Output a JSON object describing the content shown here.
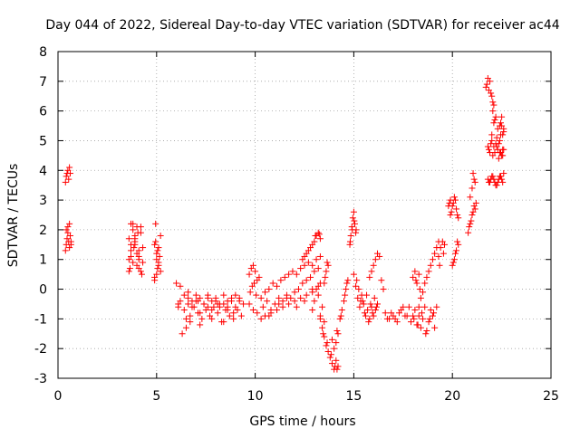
{
  "chart_data": {
    "type": "scatter",
    "title": "Day 044 of 2022, Sidereal Day-to-day VTEC variation (SDTVAR) for receiver ac44",
    "xlabel": "GPS time / hours",
    "ylabel": "SDTVAR / TECUs",
    "xlim": [
      0,
      25
    ],
    "ylim": [
      -3,
      8
    ],
    "xticks": [
      "0",
      "5",
      "10",
      "15",
      "20",
      "25"
    ],
    "yticks": [
      "-3",
      "-2",
      "-1",
      "0",
      "1",
      "2",
      "3",
      "4",
      "5",
      "6",
      "7",
      "8"
    ],
    "grid": true,
    "marker": "+",
    "series": [
      {
        "name": "SDTVAR",
        "color": "#ff0000",
        "x": [
          0.38,
          0.42,
          0.46,
          0.5,
          0.54,
          0.58,
          0.62,
          0.38,
          0.42,
          0.46,
          0.5,
          0.54,
          0.58,
          0.62,
          0.66,
          0.42,
          0.5,
          0.58,
          0.66,
          3.6,
          3.7,
          3.8,
          3.9,
          4.0,
          4.1,
          4.2,
          4.3,
          3.6,
          3.7,
          3.8,
          3.9,
          4.0,
          4.1,
          4.2,
          3.6,
          3.7,
          3.8,
          3.9,
          4.0,
          4.1,
          4.2,
          3.7,
          3.9,
          4.1,
          4.3,
          3.65,
          3.85,
          4.05,
          4.25,
          4.9,
          5.0,
          5.1,
          5.2,
          4.9,
          5.0,
          5.1,
          5.2,
          4.95,
          5.05,
          5.15,
          4.9,
          5.0,
          5.1,
          4.95,
          5.05,
          6.0,
          6.2,
          6.4,
          6.6,
          6.8,
          7.0,
          7.2,
          7.4,
          7.6,
          7.8,
          8.0,
          8.2,
          8.4,
          8.6,
          8.8,
          9.0,
          9.2,
          9.4,
          6.1,
          6.3,
          6.5,
          6.7,
          6.9,
          7.1,
          7.3,
          7.5,
          7.7,
          7.9,
          8.1,
          8.3,
          8.5,
          8.7,
          8.9,
          9.1,
          9.3,
          6.2,
          6.4,
          6.6,
          6.8,
          7.0,
          7.2,
          7.4,
          7.6,
          7.8,
          8.0,
          8.2,
          8.4,
          8.6,
          8.8,
          9.0,
          6.5,
          6.7,
          7.2,
          7.8,
          8.4,
          8.9,
          6.1,
          6.6,
          7.1,
          7.6,
          8.1,
          8.6,
          9.2,
          9.7,
          9.8,
          9.9,
          10.0,
          10.1,
          10.2,
          9.75,
          9.85,
          9.95,
          10.05,
          9.7,
          9.9,
          10.1,
          10.3,
          10.5,
          10.7,
          10.9,
          11.1,
          11.3,
          11.5,
          11.7,
          11.9,
          12.1,
          12.3,
          12.5,
          12.7,
          12.9,
          13.1,
          13.3,
          10.4,
          10.6,
          10.8,
          11.0,
          11.2,
          11.4,
          11.6,
          11.8,
          12.0,
          12.2,
          12.4,
          12.6,
          12.8,
          13.0,
          13.2,
          10.5,
          10.8,
          11.1,
          11.4,
          11.7,
          12.0,
          12.3,
          12.6,
          12.9,
          13.2,
          10.3,
          10.7,
          11.2,
          11.6,
          12.1,
          12.5,
          12.9,
          13.3,
          12.4,
          12.6,
          12.8,
          13.0,
          13.1,
          13.2,
          13.3,
          12.5,
          12.7,
          12.9,
          13.05,
          13.25,
          12.9,
          13.0,
          13.1,
          13.2,
          13.3,
          13.4,
          13.5,
          13.3,
          13.4,
          13.5,
          13.6,
          13.7,
          13.8,
          13.9,
          14.0,
          14.1,
          14.2,
          13.45,
          13.65,
          13.85,
          14.05,
          14.15,
          14.1,
          14.2,
          13.9,
          14.0,
          14.15,
          13.5,
          13.6,
          13.7,
          13.55,
          13.65,
          14.3,
          14.4,
          14.5,
          14.6,
          14.7,
          14.35,
          14.55,
          14.65,
          14.8,
          14.85,
          14.9,
          14.95,
          15.0,
          15.05,
          15.1,
          14.82,
          14.92,
          15.02,
          15.12,
          15.0,
          15.1,
          15.2,
          15.3,
          15.4,
          15.5,
          15.6,
          15.7,
          15.8,
          15.9,
          16.0,
          16.1,
          16.2,
          15.15,
          15.35,
          15.55,
          15.75,
          15.95,
          16.15,
          15.25,
          15.45,
          15.65,
          15.85,
          16.05,
          15.8,
          15.9,
          16.0,
          16.1,
          16.2,
          16.3,
          16.4,
          16.5,
          16.6,
          16.8,
          17.0,
          17.2,
          17.4,
          17.6,
          17.8,
          16.7,
          16.9,
          17.1,
          17.3,
          17.5,
          17.7,
          17.9,
          18.0,
          18.1,
          18.2,
          18.3,
          18.4,
          18.5,
          18.6,
          18.7,
          18.8,
          18.9,
          19.0,
          19.1,
          19.2,
          18.05,
          18.25,
          18.45,
          18.65,
          18.85,
          19.05,
          18.0,
          18.1,
          18.2,
          18.3,
          18.15,
          18.35,
          18.3,
          18.4,
          18.5,
          18.6,
          18.7,
          18.8,
          18.9,
          19.0,
          19.1,
          19.2,
          19.3,
          19.3,
          19.4,
          19.5,
          19.6,
          19.35,
          19.55,
          19.9,
          20.0,
          20.1,
          20.2,
          20.3,
          19.95,
          20.05,
          20.15,
          20.25,
          20.0,
          20.1,
          20.2,
          20.3,
          20.05,
          20.15,
          20.25,
          19.8,
          19.85,
          19.9,
          20.8,
          20.9,
          21.0,
          21.1,
          21.2,
          20.85,
          20.95,
          21.05,
          21.15,
          20.9,
          21.0,
          21.1,
          21.05,
          21.15,
          21.7,
          21.8,
          21.9,
          22.0,
          22.1,
          21.75,
          21.85,
          21.95,
          22.05,
          22.0,
          22.1,
          22.2,
          22.3,
          22.4,
          22.5,
          22.6,
          22.05,
          22.15,
          22.25,
          22.35,
          22.45,
          22.55,
          21.8,
          21.9,
          22.0,
          22.1,
          22.2,
          22.3,
          22.4,
          22.5,
          22.6,
          21.85,
          21.95,
          22.05,
          22.15,
          22.25,
          22.35,
          22.45,
          22.55,
          21.8,
          21.9,
          22.0,
          22.1,
          22.2,
          22.3,
          22.4,
          22.5,
          22.6,
          21.85,
          21.95,
          22.05,
          22.15,
          22.25,
          22.35,
          22.45,
          22.55,
          22.4,
          22.5,
          22.6,
          22.45,
          22.55
        ],
        "y": [
          3.6,
          3.8,
          3.9,
          4.0,
          3.7,
          4.1,
          3.9,
          1.3,
          1.5,
          1.7,
          1.9,
          1.6,
          1.4,
          1.8,
          1.5,
          2.0,
          2.1,
          2.2,
          1.6,
          1.0,
          1.5,
          2.0,
          1.8,
          1.2,
          0.7,
          1.9,
          1.4,
          0.6,
          1.1,
          2.2,
          1.6,
          0.8,
          1.3,
          2.1,
          1.7,
          1.3,
          0.9,
          1.5,
          2.1,
          1.0,
          0.6,
          2.2,
          1.7,
          1.1,
          0.9,
          0.7,
          1.4,
          1.9,
          0.5,
          1.5,
          1.2,
          0.9,
          0.6,
          0.4,
          1.0,
          1.4,
          1.8,
          2.2,
          0.7,
          1.1,
          0.3,
          0.5,
          0.8,
          1.6,
          1.3,
          0.2,
          -0.4,
          -0.7,
          -0.3,
          -0.6,
          -0.4,
          -0.8,
          -0.5,
          -0.3,
          -0.7,
          -0.4,
          -0.6,
          -0.5,
          -0.7,
          -0.4,
          -0.6,
          -0.3,
          -0.5,
          -0.6,
          -1.5,
          -1.0,
          -0.9,
          -0.6,
          -0.8,
          -1.0,
          -0.7,
          -0.9,
          -0.6,
          -0.8,
          -1.1,
          -0.7,
          -0.9,
          -0.8,
          -0.7,
          -0.9,
          0.1,
          -0.2,
          -0.1,
          -0.4,
          -0.2,
          -0.3,
          -0.5,
          -0.2,
          -0.4,
          -0.3,
          -0.5,
          -0.2,
          -0.4,
          -0.3,
          -0.2,
          -1.3,
          -1.1,
          -1.2,
          -1.0,
          -1.1,
          -1.0,
          -0.5,
          -0.5,
          -0.4,
          -0.6,
          -0.5,
          -0.6,
          -0.4,
          0.5,
          0.7,
          0.8,
          0.6,
          0.3,
          0.4,
          -0.1,
          0.1,
          0.2,
          -0.2,
          -0.5,
          -0.7,
          -0.8,
          -0.3,
          -0.1,
          0.0,
          0.2,
          0.1,
          0.3,
          0.4,
          0.5,
          0.6,
          0.5,
          0.7,
          0.8,
          0.9,
          0.8,
          1.0,
          1.1,
          -0.6,
          -0.4,
          -0.7,
          -0.5,
          -0.3,
          -0.4,
          -0.2,
          -0.3,
          -0.1,
          0.0,
          0.2,
          0.3,
          0.4,
          0.6,
          0.7,
          -0.9,
          -0.8,
          -0.7,
          -0.6,
          -0.5,
          -0.4,
          -0.3,
          -0.2,
          -0.1,
          0.1,
          -1.0,
          -0.9,
          -0.5,
          -0.3,
          -0.6,
          -0.4,
          0.0,
          0.2,
          1.0,
          1.2,
          1.4,
          1.6,
          1.8,
          1.9,
          1.7,
          1.1,
          1.3,
          1.5,
          1.8,
          1.85,
          -0.7,
          -0.4,
          0.0,
          -0.2,
          -0.9,
          -0.6,
          -1.1,
          -1.0,
          -1.3,
          -1.6,
          -1.9,
          -2.1,
          -2.3,
          -2.5,
          -2.7,
          -2.4,
          -2.6,
          -1.5,
          -1.8,
          -2.2,
          -2.6,
          -2.7,
          -1.8,
          -1.5,
          -1.7,
          -2.0,
          -1.4,
          0.2,
          0.6,
          0.8,
          0.4,
          0.9,
          -1.0,
          -0.7,
          -0.4,
          0.0,
          0.3,
          -0.9,
          -0.2,
          0.2,
          1.5,
          1.8,
          2.1,
          2.4,
          2.6,
          2.2,
          1.9,
          1.6,
          2.0,
          2.3,
          2.0,
          0.5,
          0.1,
          -0.3,
          -0.6,
          -0.2,
          -0.5,
          -0.9,
          -0.7,
          -1.0,
          -0.6,
          -0.9,
          -0.7,
          -0.5,
          0.3,
          -0.4,
          -0.8,
          -1.1,
          -0.8,
          -0.6,
          0.0,
          -0.4,
          -0.2,
          -0.5,
          -0.3,
          0.4,
          0.6,
          0.8,
          1.0,
          1.2,
          1.1,
          0.3,
          0.0,
          -0.8,
          -1.0,
          -0.9,
          -1.1,
          -0.7,
          -0.9,
          -0.6,
          -1.0,
          -0.8,
          -1.0,
          -0.8,
          -0.6,
          -0.9,
          -1.1,
          -0.9,
          -0.7,
          -1.2,
          -0.9,
          -1.3,
          -1.0,
          -0.6,
          -1.4,
          -1.1,
          -0.7,
          -0.9,
          -1.3,
          -0.6,
          -1.0,
          -1.2,
          -0.8,
          -1.5,
          -1.0,
          -0.8,
          0.4,
          0.6,
          0.2,
          0.5,
          0.3,
          0.0,
          -0.6,
          -0.3,
          -0.1,
          0.2,
          0.4,
          0.6,
          0.8,
          1.0,
          1.2,
          1.4,
          1.6,
          1.1,
          1.4,
          1.6,
          1.5,
          0.8,
          1.2,
          2.5,
          2.8,
          3.1,
          2.7,
          2.4,
          2.6,
          2.9,
          3.0,
          2.5,
          0.8,
          1.0,
          1.3,
          1.5,
          0.9,
          1.2,
          1.6,
          2.8,
          2.9,
          3.0,
          1.9,
          2.2,
          2.5,
          2.8,
          2.9,
          2.1,
          2.3,
          2.6,
          2.7,
          3.1,
          3.4,
          3.7,
          3.9,
          3.6,
          6.8,
          7.1,
          7.0,
          6.5,
          6.2,
          6.9,
          6.7,
          6.6,
          6.3,
          5.2,
          5.6,
          5.8,
          5.4,
          5.0,
          5.5,
          5.3,
          6.0,
          5.7,
          5.1,
          4.9,
          5.2,
          4.7,
          4.8,
          4.6,
          5.0,
          4.8,
          4.9,
          4.7,
          4.6,
          4.5,
          4.7,
          4.7,
          4.9,
          4.5,
          4.6,
          4.8,
          4.4,
          4.6,
          4.5,
          3.7,
          3.6,
          3.8,
          3.7,
          3.5,
          3.6,
          3.8,
          3.7,
          3.9,
          3.6,
          3.7,
          3.8,
          3.6,
          3.5,
          3.7,
          3.8,
          3.6,
          5.5,
          5.8,
          5.4,
          5.6,
          5.2
        ]
      }
    ]
  }
}
